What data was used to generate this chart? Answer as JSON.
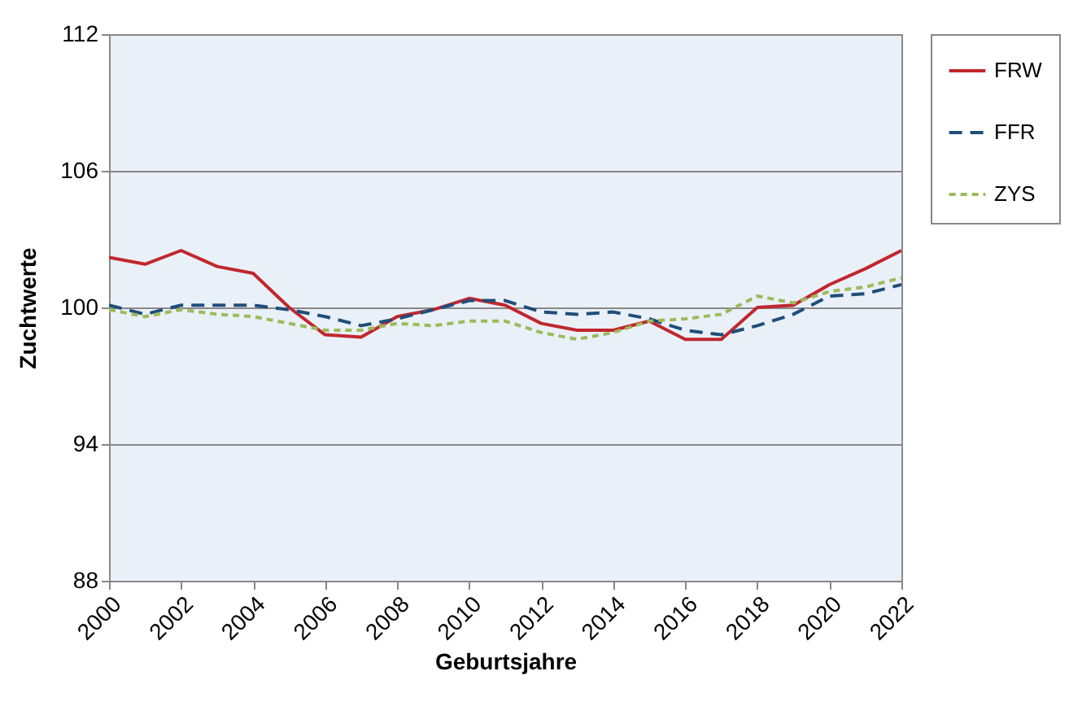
{
  "chart_data": {
    "type": "line",
    "xlabel": "Geburtsjahre",
    "ylabel": "Zuchtwerte",
    "x": [
      2000,
      2001,
      2002,
      2003,
      2004,
      2005,
      2006,
      2007,
      2008,
      2009,
      2010,
      2011,
      2012,
      2013,
      2014,
      2015,
      2016,
      2017,
      2018,
      2019,
      2020,
      2021,
      2022
    ],
    "series": [
      {
        "name": "FRW",
        "color": "#c0272d",
        "line_style": "solid",
        "values": [
          102.2,
          101.9,
          102.5,
          101.8,
          101.5,
          100.0,
          98.8,
          98.7,
          99.6,
          99.9,
          100.4,
          100.1,
          99.3,
          99.0,
          99.0,
          99.4,
          98.6,
          98.6,
          100.0,
          100.1,
          101.0,
          101.7,
          102.5
        ]
      },
      {
        "name": "FFR",
        "color": "#1f4e79",
        "line_style": "dashed",
        "values": [
          100.1,
          99.7,
          100.1,
          100.1,
          100.1,
          99.9,
          99.6,
          99.2,
          99.5,
          99.9,
          100.3,
          100.3,
          99.8,
          99.7,
          99.8,
          99.5,
          99.0,
          98.8,
          99.2,
          99.7,
          100.5,
          100.6,
          101.0
        ]
      },
      {
        "name": "ZYS",
        "color": "#9bbb59",
        "line_style": "dotted",
        "values": [
          99.9,
          99.6,
          99.9,
          99.7,
          99.6,
          99.3,
          99.0,
          99.0,
          99.3,
          99.2,
          99.4,
          99.4,
          98.9,
          98.6,
          98.9,
          99.4,
          99.5,
          99.7,
          100.5,
          100.2,
          100.7,
          100.9,
          101.3
        ]
      }
    ],
    "xlim": [
      2000,
      2022
    ],
    "xticks": [
      2000,
      2002,
      2004,
      2006,
      2008,
      2010,
      2012,
      2014,
      2016,
      2018,
      2020,
      2022
    ],
    "ylim": [
      88,
      112
    ],
    "yticks": [
      88,
      94,
      100,
      106,
      112
    ],
    "grid": "y",
    "legend": "right",
    "marker": "none"
  }
}
